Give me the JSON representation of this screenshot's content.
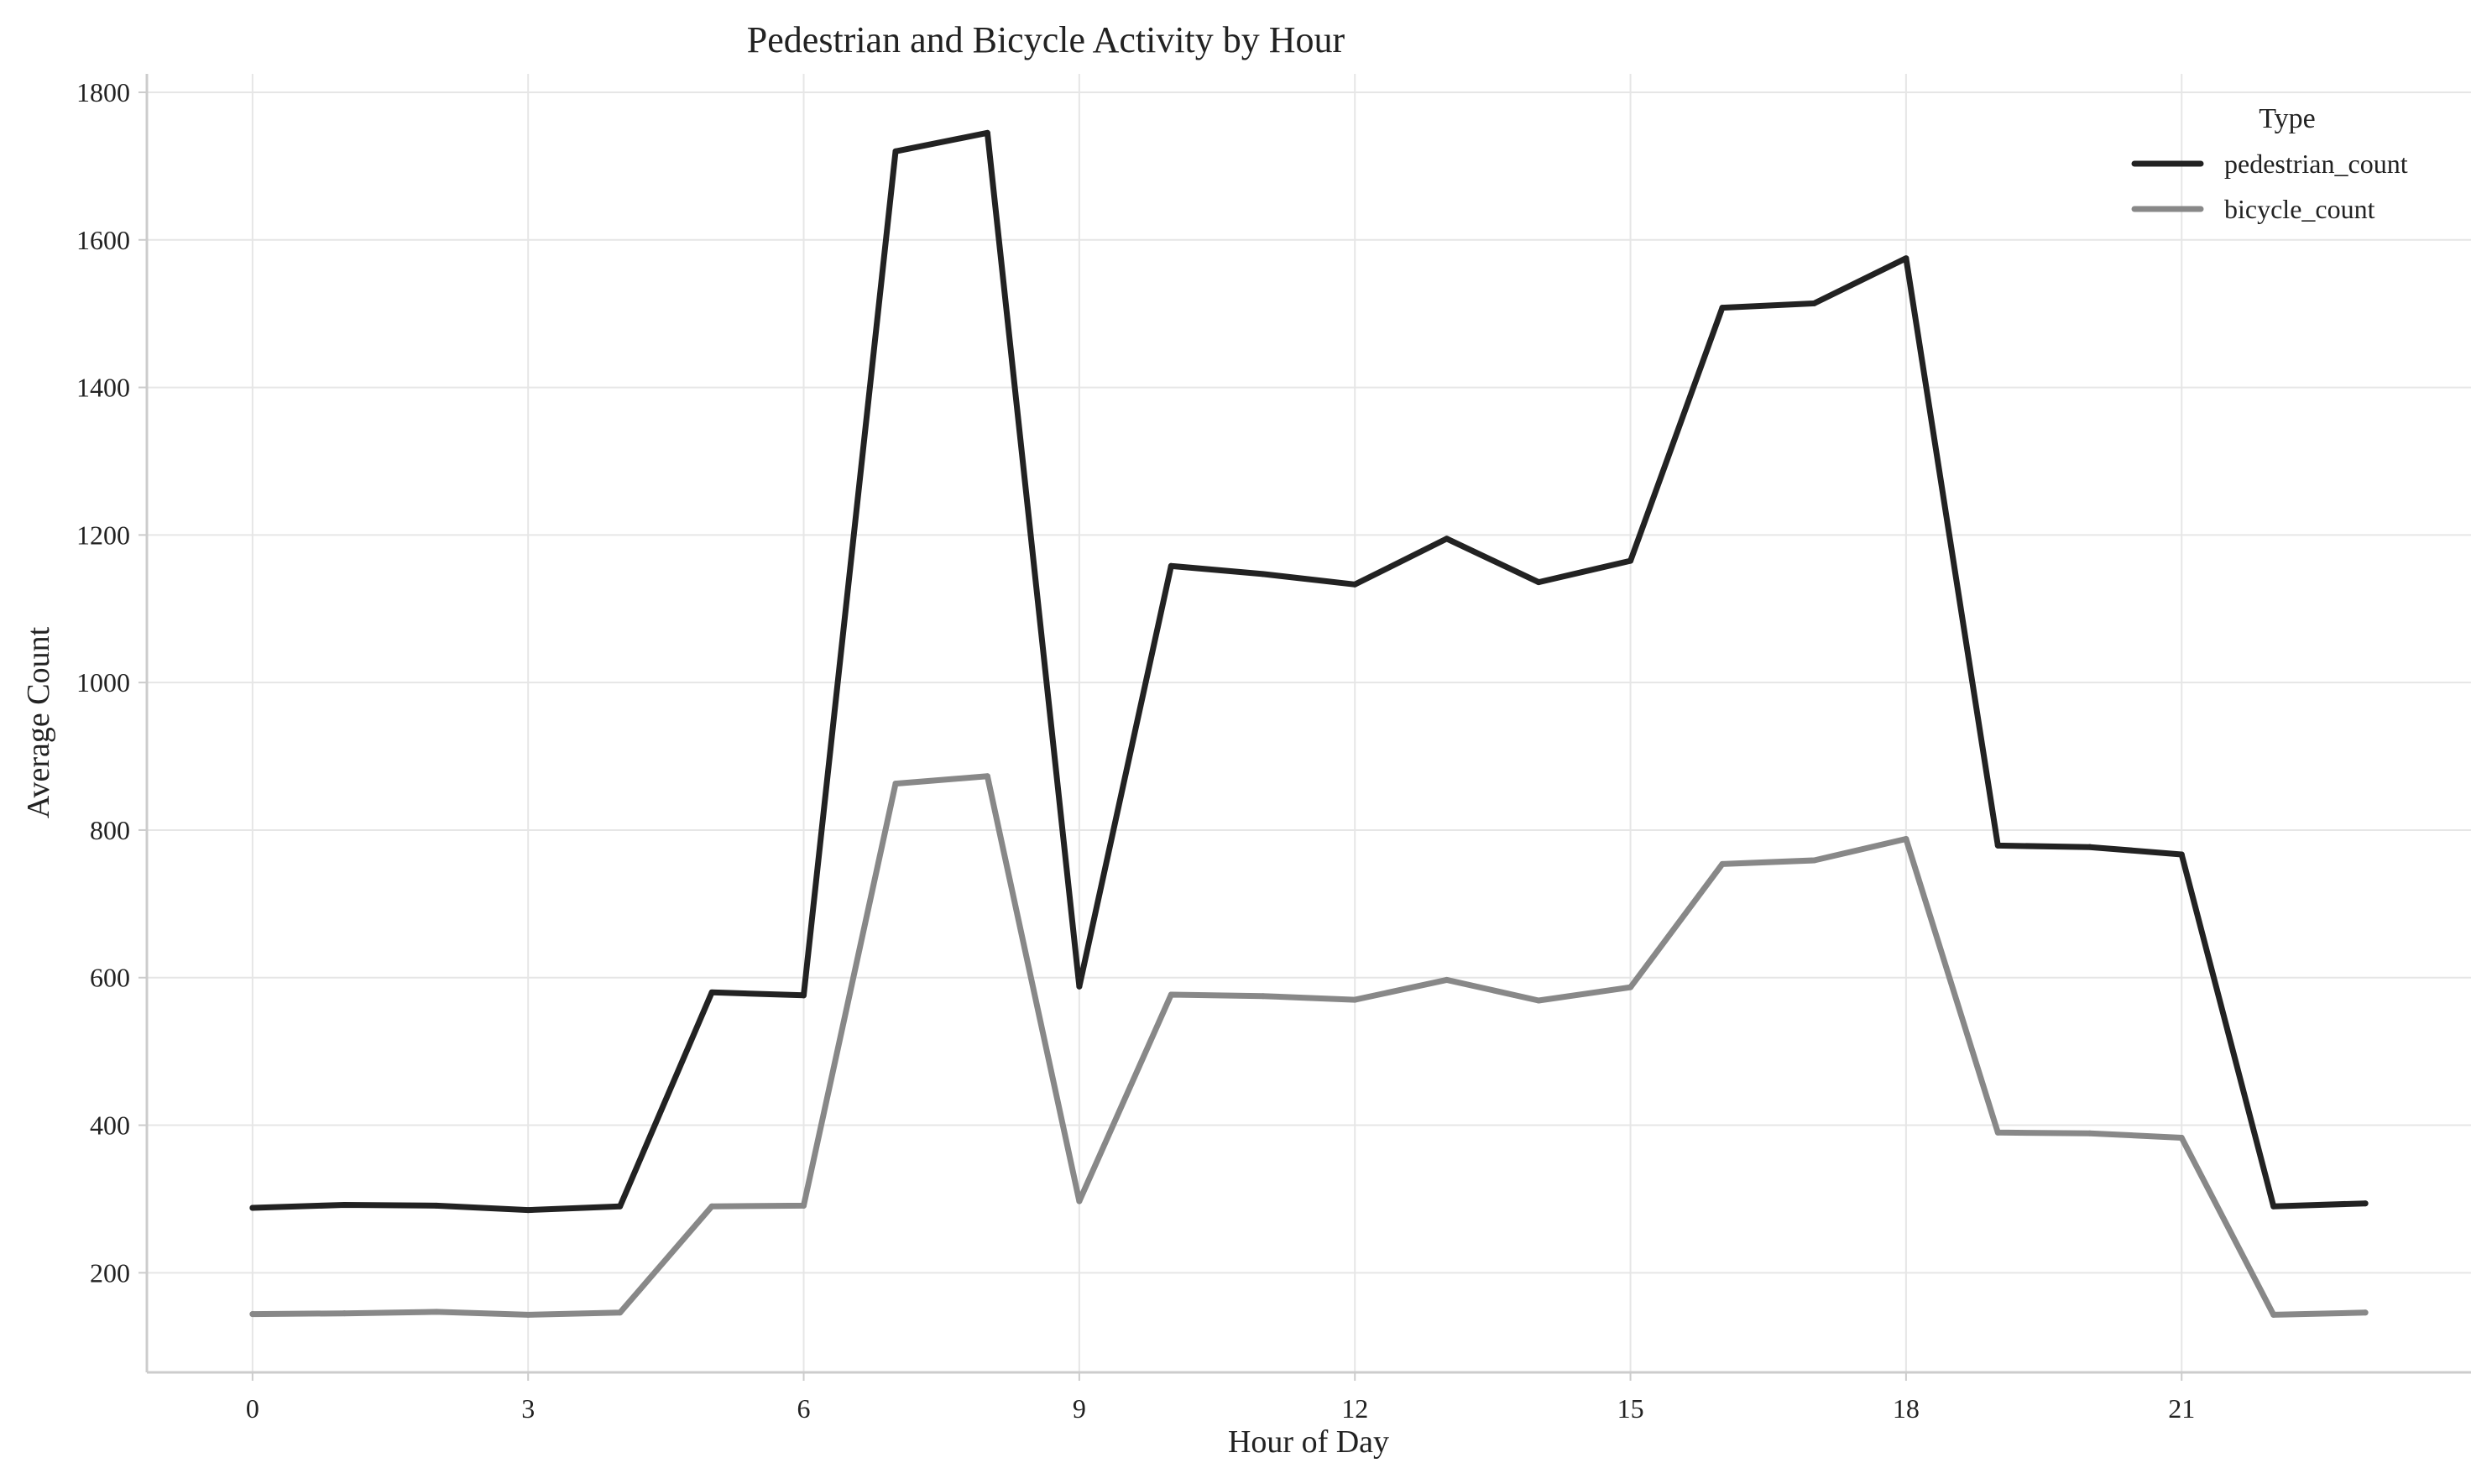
{
  "chart_data": {
    "type": "line",
    "title": "Pedestrian and Bicycle Activity by Hour",
    "xlabel": "Hour of Day",
    "ylabel": "Average Count",
    "x": [
      0,
      1,
      2,
      3,
      4,
      5,
      6,
      7,
      8,
      9,
      10,
      11,
      12,
      13,
      14,
      15,
      16,
      17,
      18,
      19,
      20,
      21,
      22,
      23
    ],
    "xticks": [
      0,
      3,
      6,
      9,
      12,
      15,
      18,
      21
    ],
    "yticks": [
      200,
      400,
      600,
      800,
      1000,
      1200,
      1400,
      1600,
      1800
    ],
    "xlim": [
      -1.15,
      24.15
    ],
    "ylim": [
      65,
      1825
    ],
    "grid": true,
    "legend": {
      "title": "Type",
      "placement": "top-right"
    },
    "series": [
      {
        "name": "pedestrian_count",
        "color": "#222222",
        "values": [
          288,
          292,
          291,
          285,
          290,
          580,
          576,
          1720,
          1745,
          588,
          1158,
          1147,
          1133,
          1195,
          1136,
          1165,
          1508,
          1514,
          1575,
          779,
          777,
          767,
          290,
          294
        ]
      },
      {
        "name": "bicycle_count",
        "color": "#888888",
        "values": [
          144,
          145,
          147,
          143,
          146,
          290,
          291,
          863,
          873,
          297,
          577,
          575,
          570,
          597,
          569,
          587,
          754,
          759,
          788,
          390,
          389,
          383,
          143,
          146
        ]
      }
    ]
  }
}
